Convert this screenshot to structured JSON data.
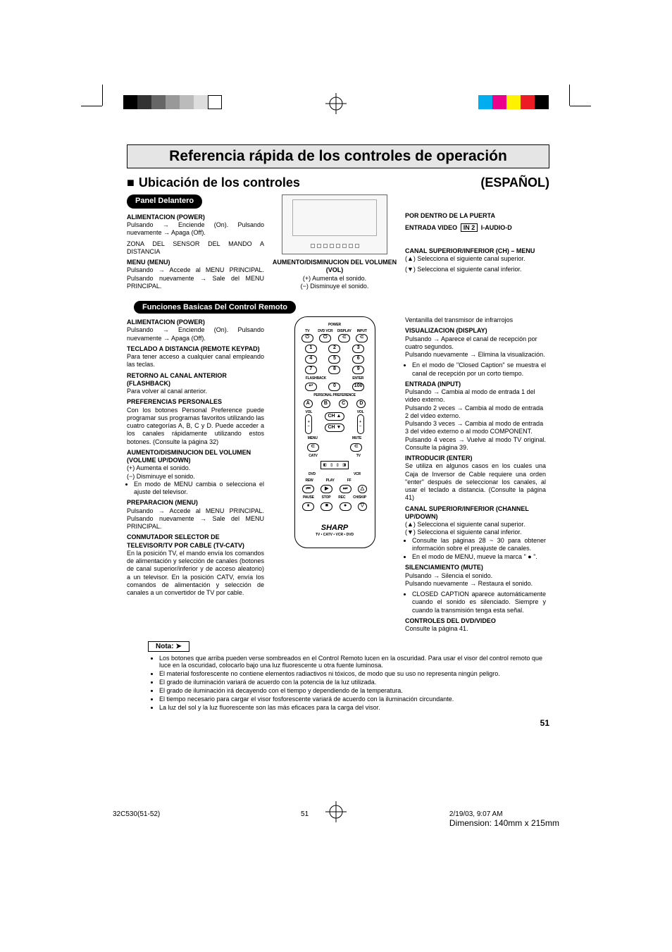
{
  "registration": {
    "left_colors": [
      "#000000",
      "#333333",
      "#666666",
      "#999999",
      "#bbbbbb",
      "#dddddd",
      "#ffffff"
    ],
    "right_colors": [
      "#00aeef",
      "#ec008c",
      "#fff200",
      "#ed1c24",
      "#000000"
    ]
  },
  "title": "Referencia rápida de los controles de operación",
  "subtitle_left": "Ubicación de los controles",
  "subtitle_right": "(ESPAÑOL)",
  "panel_band": "Panel Delantero",
  "remote_band": "Funciones Basicas Del Control Remoto",
  "panelL": {
    "power_h": "ALIMENTACION (POWER)",
    "power_p": "Pulsando → Enciende (On). Pulsando nuevamente → Apaga (Off).",
    "zona": "ZONA DEL SENSOR DEL MANDO A DISTANCIA",
    "menu_h": "MENU (MENU)",
    "menu_p": "Pulsando → Accede al MENU PRINCIPAL. Pulsando nuevamente → Sale del MENU PRINCIPAL."
  },
  "panelM": {
    "vol_h": "AUMENTO/DISMINUCION DEL VOLUMEN (VOL)",
    "vol_p1": "(+) Aumenta el sonido.",
    "vol_p2": "(−) Disminuye el sonido."
  },
  "panelR": {
    "door": "POR DENTRO DE LA PUERTA",
    "input_h": "ENTRADA VIDEO",
    "input_box": "IN 2",
    "input_tail": "I-AUDIO-D",
    "ch_h": "CANAL SUPERIOR/INFERIOR (CH) – MENU",
    "ch_up": "(▲) Selecciona el siguiente canal superior.",
    "ch_dn": "(▼) Selecciona el siguiente canal inferior."
  },
  "remoteL": {
    "power_h": "ALIMENTACION (POWER)",
    "power_p": "Pulsando → Enciende (On). Pulsando nuevamente → Apaga (Off).",
    "keypad_h": "TECLADO A DISTANCIA (REMOTE KEYPAD)",
    "keypad_p": "Para tener acceso a cualquier canal empleando las teclas.",
    "flash_h": "RETORNO AL CANAL ANTERIOR (FLASHBACK)",
    "flash_p": "Para volver al canal anterior.",
    "pref_h": "PREFERENCIAS PERSONALES",
    "pref_p": "Con los botones Personal Preference puede programar sus programas favoritos utilizando las cuatro categorías A, B, C y D. Puede acceder a los canales rápidamente utilizando estos botones. (Consulte la página 32)",
    "vol_h": "AUMENTO/DISMINUCION DEL VOLUMEN (VOLUME UP/DOWN)",
    "vol_b1": "(+) Aumenta el sonido.",
    "vol_b2": "(−) Disminuye el sonido.",
    "vol_b3": "En modo de MENU cambia o selecciona el ajuste del televisor.",
    "prep_h": "PREPARACION (MENU)",
    "prep_p": "Pulsando → Accede al MENU PRINCIPAL. Pulsando nuevamente → Sale del MENU PRINCIPAL.",
    "catv_h": "CONMUTADOR SELECTOR DE TELEVISOR/TV POR CABLE (TV-CATV)",
    "catv_p": "En la posición TV, el mando envía los comandos de alimentación y selección de canales (botones de canal superior/inferior y de acceso aleatorio) a un televisor. En la posición CATV, envía los comandos de alimentación y selección de canales a un convertidor de TV por cable."
  },
  "remoteR": {
    "ir": "Ventanilla del transmisor de infrarrojos",
    "disp_h": "VISUALIZACION (DISPLAY)",
    "disp_p1": "Pulsando → Aparece el canal de recepción por cuatro segundos.",
    "disp_p2": "Pulsando nuevamente → Elimina la visualización.",
    "disp_b1": "En el modo de \"Closed Caption\" se muestra el canal de recepción por un corto tiempo.",
    "input_h": "ENTRADA (INPUT)",
    "input_p1": "Pulsando → Cambia al modo de entrada 1 del video externo.",
    "input_p2": "Pulsando 2 veces → Cambia al modo de entrada 2 del video externo.",
    "input_p3": "Pulsando 3 veces → Cambia al modo de entrada 3 del video externo o al modo COMPONENT.",
    "input_p4": "Pulsando 4 veces → Vuelve al modo TV original. Consulte la página 39.",
    "enter_h": "INTRODUCIR (ENTER)",
    "enter_p": "Se utiliza en algunos casos en los cuales una Caja de Inversor de Cable requiere una orden \"enter\" después de seleccionar los canales, al usar el teclado a distancia. (Consulte la página 41)",
    "ch_h": "CANAL SUPERIOR/INFERIOR (CHANNEL UP/DOWN)",
    "ch_up": "(▲) Selecciona el siguiente canal superior.",
    "ch_dn": "(▼) Selecciona el siguiente canal inferior.",
    "ch_b1": "Consulte las páginas 28 ~ 30 para obtener información sobre el preajuste de canales.",
    "ch_b2": "En el modo de MENU, mueve la marca \" ● \".",
    "mute_h": "SILENCIAMIENTO (MUTE)",
    "mute_p1": "Pulsando → Silencia el sonido.",
    "mute_p2": "Pulsando nuevamente → Restaura el sonido.",
    "mute_b1": "CLOSED CAPTION aparece automáticamente cuando el sonido es silenciado. Siempre y cuando la transmisión tenga esta señal.",
    "dvd_h": "CONTROLES DEL DVD/VIDEO",
    "dvd_p": "Consulte la página 41."
  },
  "remote_labels": {
    "power": "POWER",
    "tv": "TV",
    "dvd": "DVD VCR",
    "display": "DISPLAY",
    "input": "INPUT",
    "flashback": "FLASHBACK",
    "enter": "ENTER",
    "pref": "PERSONAL PREFERENCE",
    "vol": "VOL",
    "ch_up": "CH ▲",
    "ch_dn": "CH ▼",
    "menu": "MENU",
    "mute": "MUTE",
    "catv": "CATV",
    "tv2": "TV",
    "dvd2": "DVD",
    "vcr": "VCR",
    "rew": "REW",
    "play": "PLAY",
    "ff": "FF",
    "pause": "PAUSE",
    "stop": "STOP",
    "rec": "REC",
    "chskip": "CH/SKIP",
    "brand": "SHARP",
    "brandsub": "TV • CATV • VCR • DVD"
  },
  "nota_label": "Nota:",
  "nota": [
    "Los botones que arriba pueden verse sombreados en el Control Remoto lucen en la oscuridad. Para usar el visor del control remoto que luce en la oscuridad, colocarlo bajo una luz fluorescente u otra fuente luminosa.",
    "El material fosforescente no contiene elementos radiactivos ni tóxicos, de modo que su uso no representa ningún peligro.",
    "El grado de iluminación variará de acuerdo con la potencia de la luz utilizada.",
    "El grado de iluminación irá decayendo con el tiempo y dependiendo de la temperatura.",
    "El tiempo necesario para cargar el visor fosforescente variará de acuerdo con la iluminación circundante.",
    "La luz del sol y la luz fluorescente son las más eficaces para la carga del visor."
  ],
  "page_number": "51",
  "footer": {
    "file": "32C530(51-52)",
    "page": "51",
    "date": "2/19/03, 9:07 AM",
    "dim": "Dimension: 140mm x 215mm"
  }
}
